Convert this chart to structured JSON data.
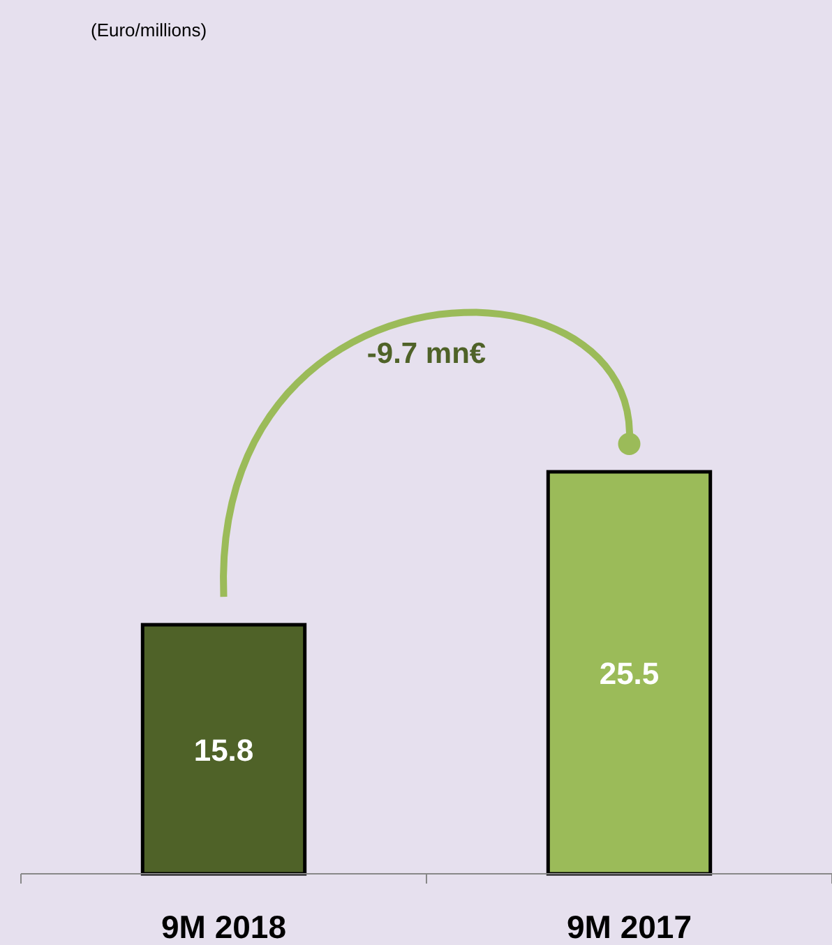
{
  "chart_data": {
    "type": "bar",
    "title": "(Euro/millions)",
    "categories": [
      "9M 2018",
      "9M 2017"
    ],
    "values": [
      15.8,
      25.5
    ],
    "colors": [
      "#4f6228",
      "#9bbb59"
    ],
    "data_labels": true,
    "annotations": [
      "-9.7 mn€"
    ]
  }
}
